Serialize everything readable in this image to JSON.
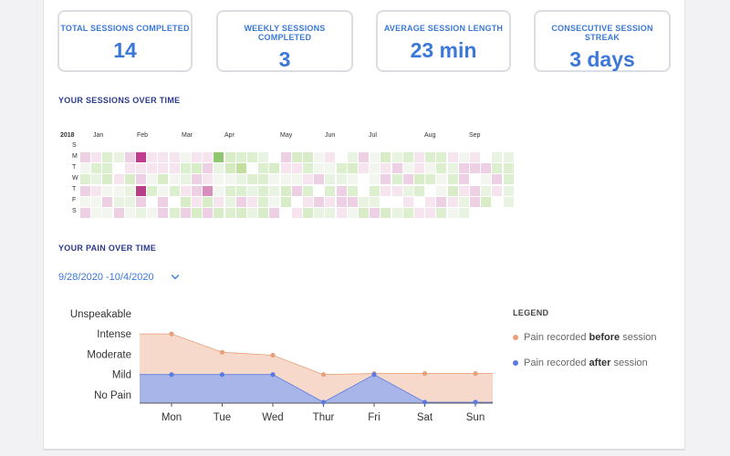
{
  "stats": [
    {
      "label": "TOTAL SESSIONS COMPLETED",
      "value": "14"
    },
    {
      "label": "WEEKLY SESSIONS COMPLETED",
      "value": "3"
    },
    {
      "label": "AVERAGE SESSION LENGTH",
      "value": "23 min"
    },
    {
      "label": "CONSECUTIVE SESSION STREAK",
      "value": "3 days"
    }
  ],
  "sessions_section": {
    "title": "YOUR SESSIONS OVER TIME",
    "year": "2018",
    "months": [
      "Jan",
      "Feb",
      "Mar",
      "Apr",
      "May",
      "Jun",
      "Jul",
      "Aug",
      "Sep"
    ],
    "weekdays": [
      "S",
      "M",
      "T",
      "W",
      "T",
      "F",
      "S"
    ]
  },
  "pain_section": {
    "title": "YOUR PAIN OVER TIME",
    "date_range": "9/28/2020 -10/4/2020"
  },
  "legend": {
    "title": "LEGEND",
    "before_prefix": "Pain recorded ",
    "before_bold": "before",
    "before_suffix": " session",
    "after_prefix": "Pain recorded ",
    "after_bold": "after",
    "after_suffix": " session"
  },
  "colors": {
    "accent": "#3b78d8",
    "before": "#e8a07a",
    "before_fill": "#f6d9cb",
    "after": "#5b7be0",
    "after_fill": "#a7b5e8"
  },
  "chart_data": {
    "type": "area",
    "categories": [
      "Mon",
      "Tue",
      "Wed",
      "Thur",
      "Fri",
      "Sat",
      "Sun"
    ],
    "y_levels": [
      "No Pain",
      "Mild",
      "Moderate",
      "Intense",
      "Unspeakable"
    ],
    "series": [
      {
        "name": "Pain recorded before session",
        "values": [
          3,
          2.1,
          1.95,
          1,
          1.05,
          1.05,
          1.05
        ]
      },
      {
        "name": "Pain recorded after session",
        "values": [
          1,
          1,
          1,
          0,
          1,
          0,
          0
        ]
      }
    ],
    "ylim": [
      0,
      4
    ],
    "grid": false,
    "legend": "right"
  }
}
